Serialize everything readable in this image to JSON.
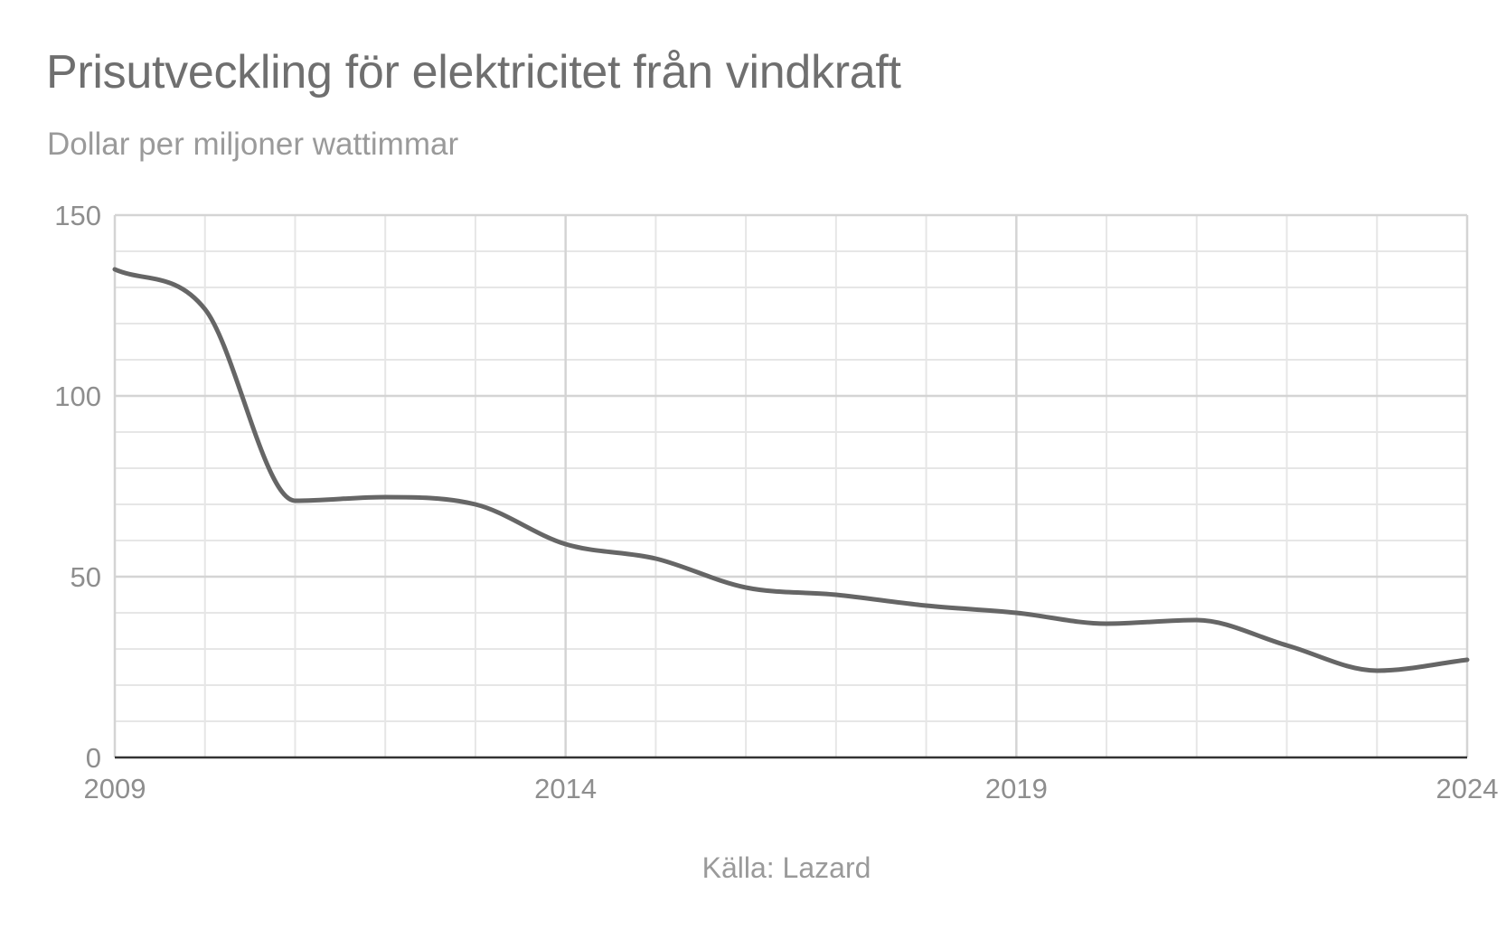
{
  "chart_data": {
    "type": "line",
    "title": "Prisutveckling för elektricitet från vindkraft",
    "subtitle": "Dollar per miljoner wattimmar",
    "xlabel": "",
    "ylabel": "",
    "source": "Källa: Lazard",
    "x": [
      2009,
      2010,
      2011,
      2012,
      2013,
      2014,
      2015,
      2016,
      2017,
      2018,
      2019,
      2020,
      2021,
      2022,
      2023,
      2024
    ],
    "series": [
      {
        "values": [
          135,
          124,
          71,
          72,
          70,
          59,
          55,
          47,
          45,
          42,
          40,
          37,
          38,
          31,
          24,
          27
        ]
      }
    ],
    "xlim": [
      2009,
      2024
    ],
    "ylim": [
      0,
      150
    ],
    "x_ticks": [
      "2009",
      "2014",
      "2019",
      "2024"
    ],
    "y_ticks": [
      "0",
      "50",
      "100",
      "150"
    ],
    "grid": true,
    "legend": "none",
    "colors": {
      "line": "#666666",
      "grid_minor": "#e6e6e6",
      "grid_major": "#d4d4d4",
      "axis": "#333333"
    }
  }
}
